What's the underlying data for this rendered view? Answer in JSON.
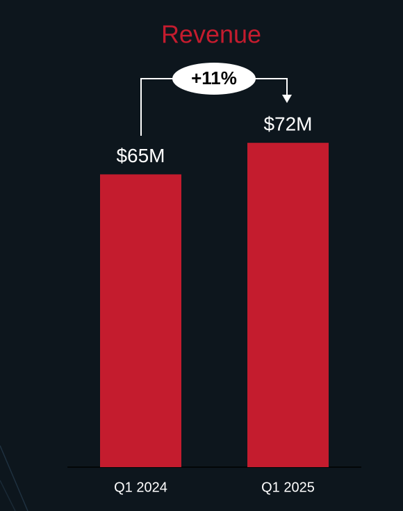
{
  "chart_data": {
    "type": "bar",
    "title": "Revenue",
    "annotation": "+11%",
    "categories": [
      "Q1 2024",
      "Q1 2025"
    ],
    "values": [
      65,
      72
    ],
    "value_labels": [
      "$65M",
      "$72M"
    ],
    "color": "#c41c2e",
    "title_color": "#c41c2e"
  }
}
